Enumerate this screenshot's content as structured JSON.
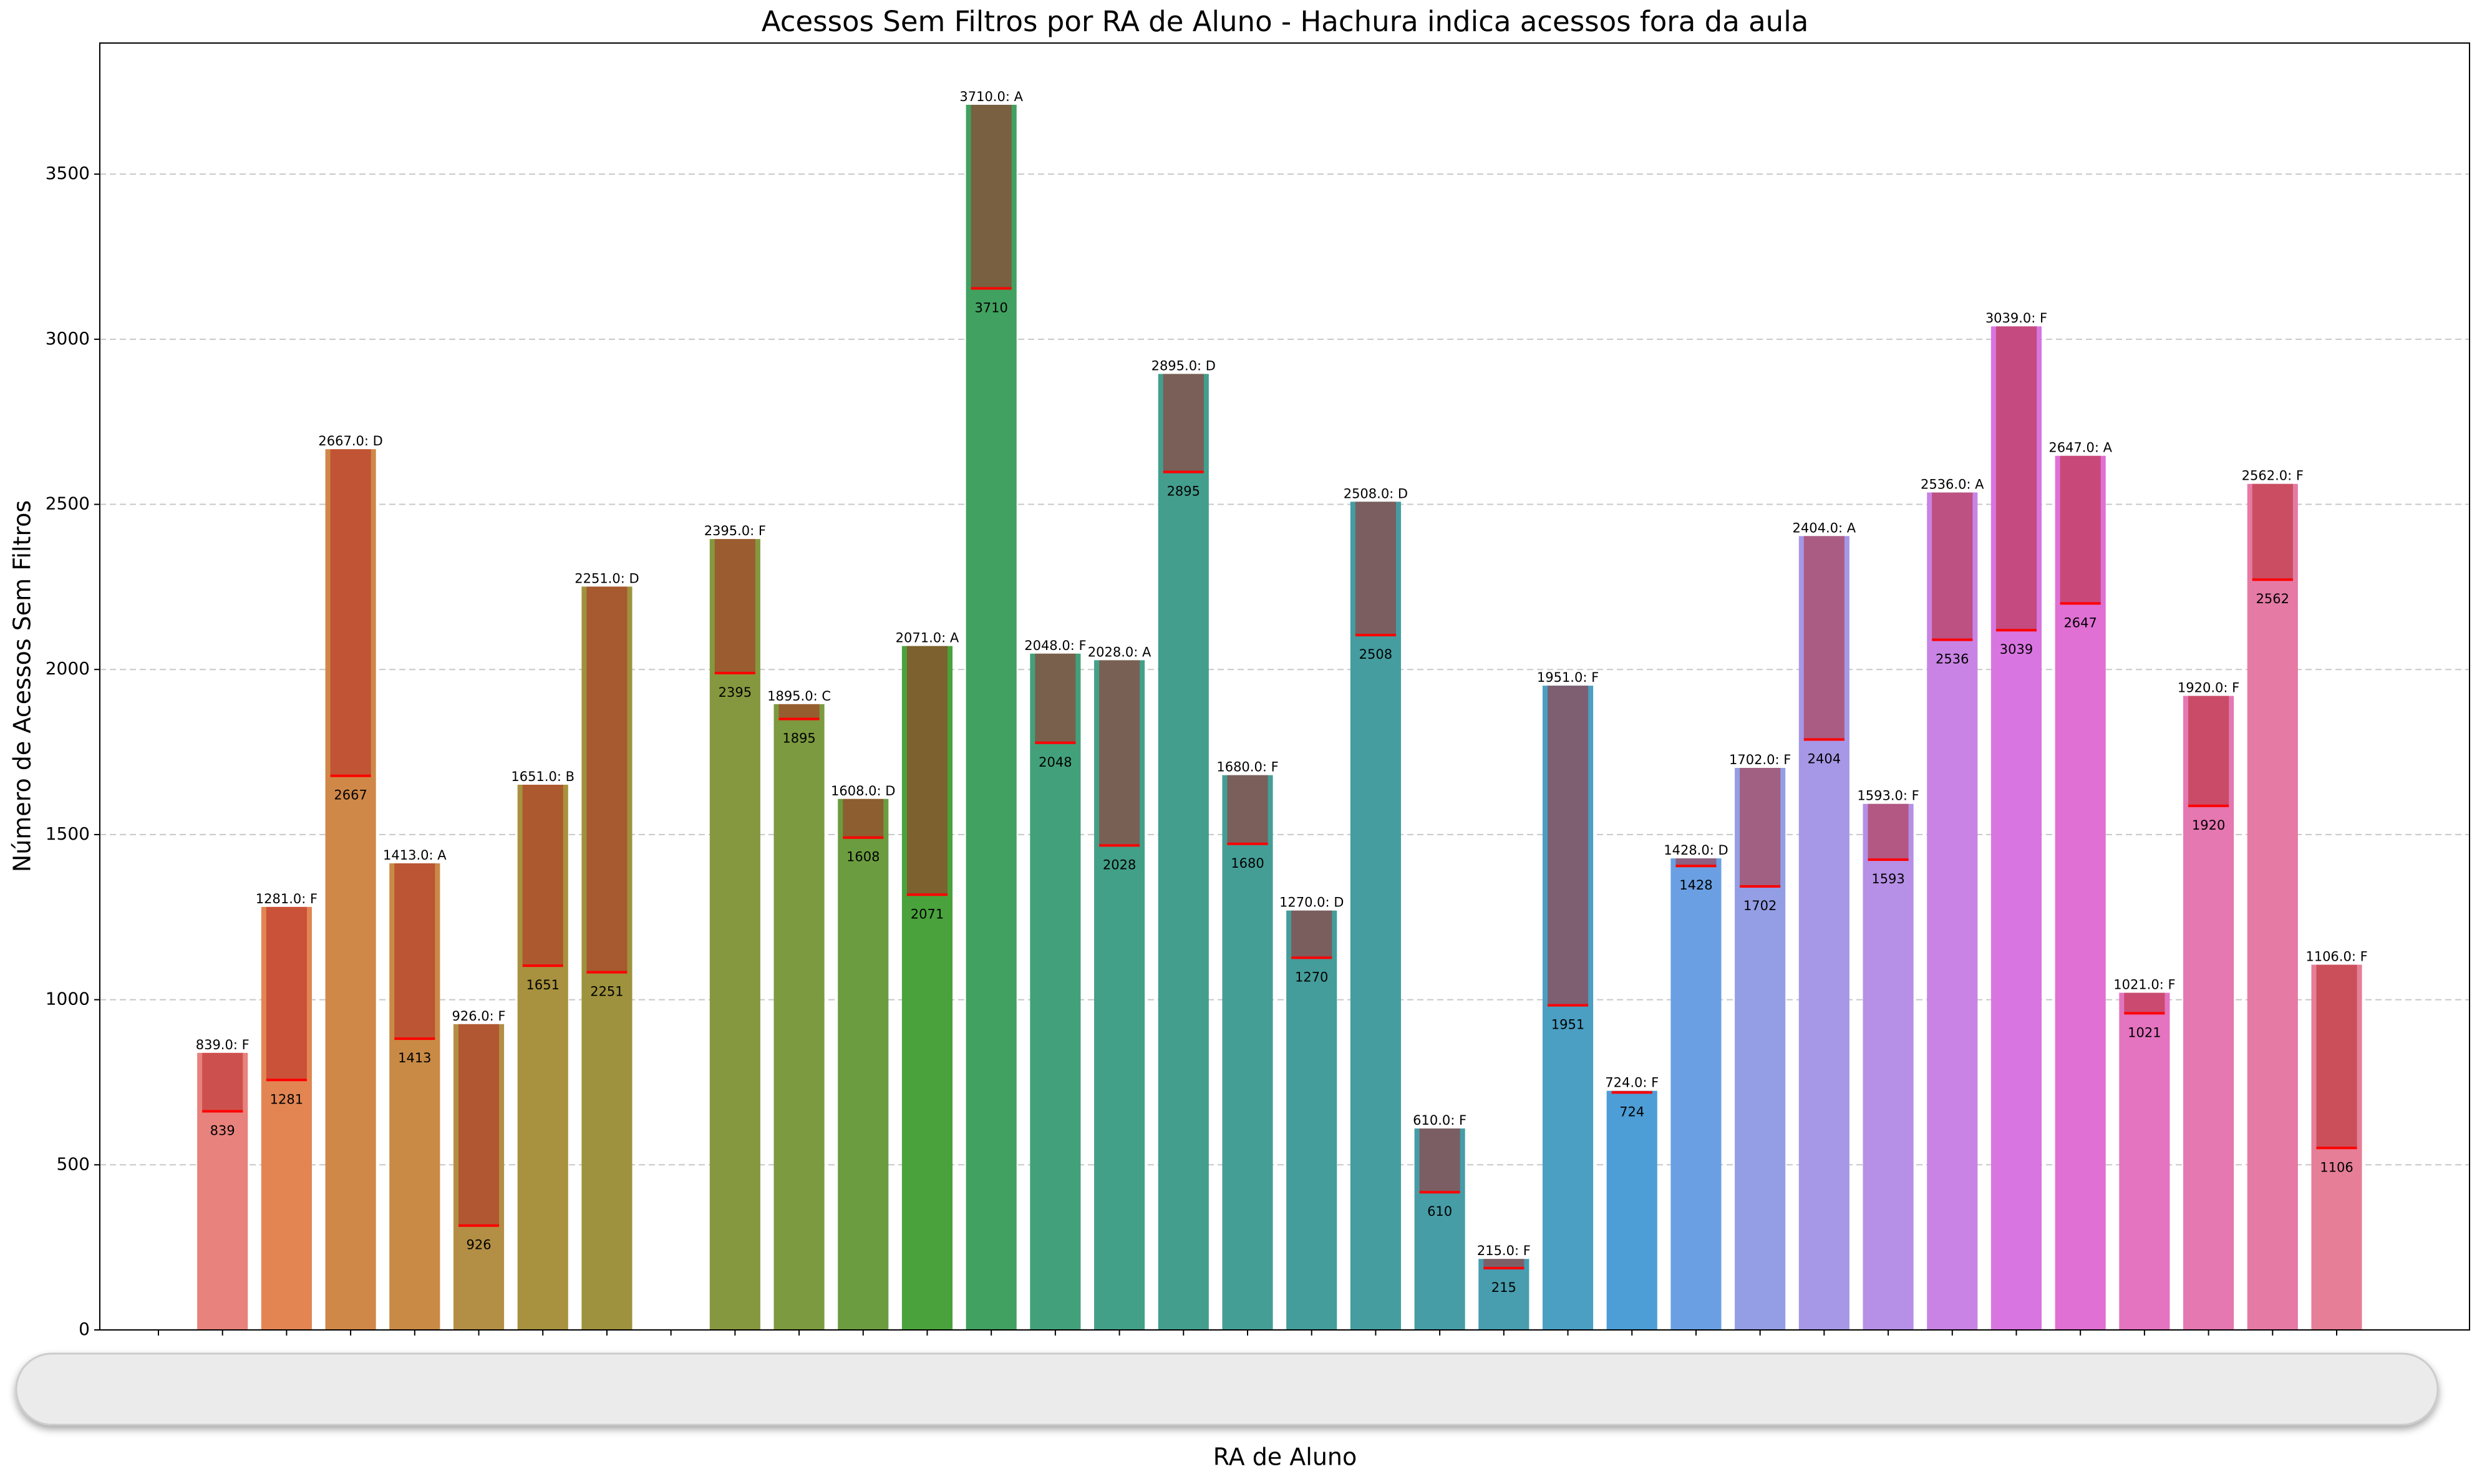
{
  "chart_data": {
    "type": "bar",
    "title": "Acessos Sem Filtros por RA de Aluno - Hachura indica acessos fora da aula",
    "xlabel": "RA de Aluno",
    "ylabel": "Número de Acessos Sem Filtros",
    "categories": [
      null,
      null,
      null,
      null,
      null,
      null,
      null,
      null,
      null,
      null,
      null,
      null,
      null,
      null,
      null,
      null,
      null,
      null,
      null,
      null,
      null,
      null,
      null,
      null,
      null,
      null,
      null,
      null,
      null,
      null,
      null,
      null,
      null,
      null,
      null
    ],
    "values": [
      0,
      839,
      1281,
      2667,
      1413,
      926,
      1651,
      2251,
      0,
      2395,
      1895,
      1608,
      2071,
      3710,
      2048,
      2028,
      2895,
      1680,
      1270,
      2508,
      610,
      215,
      1951,
      724,
      1428,
      1702,
      2404,
      1593,
      2536,
      3039,
      2647,
      1021,
      1920,
      2562,
      1106
    ],
    "value_labels": [
      null,
      "839.0: F",
      "1281.0: F",
      "2667.0: D",
      "1413.0: A",
      "926.0: F",
      "1651.0: B",
      "2251.0: D",
      null,
      "2395.0: F",
      "1895.0: C",
      "1608.0: D",
      "2071.0: A",
      "3710.0: A",
      "2048.0: F",
      "2028.0: A",
      "2895.0: D",
      "1680.0: F",
      "1270.0: D",
      "2508.0: D",
      "610.0: F",
      "215.0: F",
      "1951.0: F",
      "724.0: F",
      "1428.0: D",
      "1702.0: F",
      "2404.0: A",
      "1593.0: F",
      "2536.0: A",
      "3039.0: F",
      "2647.0: A",
      "1021.0: F",
      "1920.0: F",
      "2562.0: F",
      "1106.0: F"
    ],
    "in_class_values": [
      0,
      662,
      757,
      1678,
      882,
      316,
      1103,
      1083,
      0,
      1989,
      1850,
      1491,
      1318,
      3154,
      1778,
      1467,
      2598,
      1472,
      1127,
      2104,
      417,
      187,
      983,
      719,
      1405,
      1343,
      1788,
      1424,
      2090,
      2119,
      2200,
      959,
      1587,
      2272,
      551
    ],
    "colors": [
      "#e8807f",
      "#e8827c",
      "#e28553",
      "#d08848",
      "#c98a46",
      "#b38f45",
      "#a8923f",
      "#9e923e",
      "#8f953e",
      "#86983f",
      "#7c9a3f",
      "#6b9d40",
      "#4aa23d",
      "#41a160",
      "#42a17a",
      "#43a088",
      "#439e8e",
      "#449e96",
      "#449d9a",
      "#459da0",
      "#469da6",
      "#489dae",
      "#4a9fc3",
      "#4d9dd6",
      "#6aa0e3",
      "#939ee5",
      "#a698e6",
      "#b68fe6",
      "#c983e4",
      "#d975e1",
      "#e070d4",
      "#e474c0",
      "#e577b1",
      "#e57aa4",
      "#e57e96"
    ],
    "hatch_color": "#b02020",
    "marker_color": "#ff0000",
    "ylim": [
      0,
      3897
    ],
    "yticks": [
      0,
      500,
      1000,
      1500,
      2000,
      2500,
      3000,
      3500
    ],
    "grid": true
  }
}
